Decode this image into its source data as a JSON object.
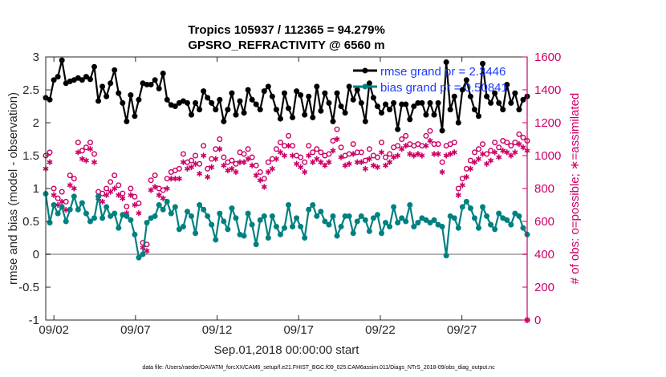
{
  "chart_data": {
    "type": "line",
    "title": "Tropics 105937 / 112365 = 94.279%",
    "subtitle": "GPSRO_REFRACTIVITY @ 6560 m",
    "xlabel": "Sep.01,2018 00:00:00 start",
    "ylabel_left": "rmse and bias (model - observation)",
    "ylabel_right": "# of obs: o=possible; ∗=assimilated",
    "footer": "data file: /Users/raeder/DAI/ATM_forcXX/CAM6_setup/f.e21.FHIST_BGC.f09_025.CAM6assim.011/Diags_NTrS_2018-09/obs_diag_output.nc",
    "x_range_days": [
      0.5,
      30.0
    ],
    "x_ticks": [
      1,
      6,
      11,
      16,
      21,
      26
    ],
    "x_tick_labels": [
      "09/02",
      "09/07",
      "09/12",
      "09/17",
      "09/22",
      "09/27"
    ],
    "ylim_left": [
      -1,
      3
    ],
    "y_ticks_left": [
      "-1",
      "-0.5",
      "0",
      "0.5",
      "1",
      "1.5",
      "2",
      "2.5",
      "3"
    ],
    "ylim_right": [
      0,
      1600
    ],
    "y_ticks_right": [
      "0",
      "200",
      "400",
      "600",
      "800",
      "1000",
      "1200",
      "1400",
      "1600"
    ],
    "legend": [
      "rmse grand pr = 2.3446",
      "bias grand pr = 0.50841"
    ],
    "colors": {
      "rmse": "#000000",
      "bias": "#008080",
      "obs": "#cc0066",
      "legend_text": "#1a3cff",
      "zero_line": "#b3b3b3"
    },
    "n_points": 120,
    "series": [
      {
        "name": "rmse",
        "axis": "left",
        "marker": "filled-circle",
        "values": [
          2.38,
          2.35,
          2.65,
          2.7,
          2.95,
          2.6,
          2.63,
          2.65,
          2.68,
          2.65,
          2.7,
          2.66,
          2.85,
          2.33,
          2.55,
          2.4,
          2.6,
          2.8,
          2.45,
          2.3,
          2.02,
          2.42,
          2.1,
          2.35,
          2.6,
          2.58,
          2.58,
          2.65,
          2.52,
          2.75,
          2.35,
          2.27,
          2.25,
          2.3,
          2.33,
          2.3,
          2.12,
          2.3,
          2.2,
          2.48,
          2.38,
          2.3,
          2.2,
          2.35,
          2.02,
          2.2,
          2.45,
          2.12,
          2.33,
          2.15,
          2.5,
          2.35,
          2.28,
          2.2,
          2.48,
          2.55,
          2.4,
          2.2,
          2.06,
          2.45,
          2.22,
          2.08,
          2.48,
          2.42,
          2.12,
          2.4,
          2.08,
          2.55,
          2.18,
          2.45,
          2.3,
          2.02,
          2.45,
          2.25,
          2.15,
          2.55,
          2.35,
          2.5,
          2.3,
          2.02,
          2.6,
          2.38,
          2.25,
          2.15,
          2.28,
          2.2,
          2.3,
          1.9,
          2.28,
          2.28,
          2.05,
          2.25,
          2.3,
          2.3,
          2.12,
          2.3,
          2.12,
          2.3,
          1.88,
          2.92,
          2.2,
          2.4,
          2.0,
          2.5,
          2.65,
          2.4,
          2.2,
          2.1,
          2.9,
          2.4,
          2.3,
          2.45,
          2.3,
          2.2,
          2.58,
          2.3,
          2.45,
          2.2,
          2.35,
          2.4
        ]
      },
      {
        "name": "bias",
        "axis": "left",
        "marker": "filled-circle",
        "values": [
          0.92,
          0.48,
          0.75,
          0.62,
          0.72,
          0.5,
          0.68,
          0.88,
          0.68,
          0.78,
          0.62,
          0.5,
          0.55,
          0.88,
          0.55,
          0.72,
          0.58,
          0.62,
          0.4,
          0.6,
          0.58,
          0.52,
          0.3,
          -0.05,
          0.0,
          0.48,
          0.55,
          0.58,
          0.75,
          0.68,
          0.8,
          0.62,
          0.72,
          0.38,
          0.42,
          0.65,
          0.58,
          0.32,
          0.75,
          0.68,
          0.58,
          0.45,
          0.22,
          0.62,
          0.5,
          0.38,
          0.7,
          0.55,
          0.3,
          0.28,
          0.62,
          0.45,
          0.15,
          0.52,
          0.58,
          0.25,
          0.58,
          0.42,
          0.3,
          0.4,
          0.75,
          0.42,
          0.55,
          0.42,
          0.25,
          0.68,
          0.75,
          0.58,
          0.65,
          0.5,
          0.45,
          0.58,
          0.28,
          0.42,
          0.58,
          0.58,
          0.32,
          0.5,
          0.58,
          0.52,
          0.35,
          0.55,
          0.6,
          0.32,
          0.48,
          0.42,
          0.72,
          0.48,
          0.55,
          0.5,
          0.75,
          0.42,
          0.48,
          0.55,
          0.52,
          0.48,
          0.52,
          0.45,
          0.42,
          -0.02,
          0.58,
          0.55,
          0.4,
          0.72,
          0.8,
          0.7,
          0.55,
          0.4,
          0.72,
          0.58,
          0.45,
          0.38,
          0.62,
          0.55,
          0.52,
          0.45,
          0.62,
          0.58,
          0.4,
          0.3
        ]
      },
      {
        "name": "possible",
        "axis": "right",
        "marker": "open-circle",
        "values": [
          1000,
          1020,
          800,
          740,
          780,
          720,
          880,
          860,
          1080,
          1030,
          1050,
          1080,
          1010,
          780,
          770,
          800,
          840,
          880,
          820,
          770,
          690,
          800,
          750,
          710,
          470,
          460,
          850,
          880,
          800,
          790,
          860,
          900,
          910,
          920,
          1010,
          960,
          970,
          1000,
          950,
          1060,
          920,
          980,
          1040,
          1100,
          990,
          960,
          970,
          950,
          1020,
          1010,
          1040,
          990,
          940,
          900,
          860,
          960,
          980,
          1040,
          1080,
          1060,
          1120,
          1060,
          1000,
          990,
          960,
          1060,
          1020,
          1040,
          1020,
          1000,
          1010,
          1090,
          1160,
          1050,
          1000,
          1010,
          1070,
          1020,
          1020,
          970,
          1040,
          1000,
          990,
          1080,
          990,
          1010,
          1050,
          1060,
          1100,
          1120,
          1070,
          1060,
          1070,
          1060,
          1120,
          1150,
          1070,
          1070,
          960,
          1060,
          1070,
          1080,
          800,
          860,
          920,
          970,
          1020,
          1040,
          1070,
          1010,
          1030,
          1080,
          1050,
          1090,
          1080,
          1060,
          1080,
          1130,
          1110,
          1090
        ]
      },
      {
        "name": "assimilated",
        "axis": "right",
        "marker": "asterisk",
        "values": [
          920,
          960,
          760,
          700,
          720,
          670,
          820,
          800,
          1020,
          980,
          970,
          1040,
          960,
          740,
          720,
          760,
          780,
          800,
          760,
          740,
          650,
          760,
          700,
          650,
          440,
          420,
          790,
          810,
          760,
          740,
          800,
          860,
          860,
          860,
          960,
          920,
          930,
          950,
          890,
          1000,
          870,
          930,
          980,
          1040,
          940,
          910,
          920,
          900,
          960,
          960,
          980,
          940,
          880,
          850,
          810,
          900,
          920,
          980,
          1020,
          1000,
          1060,
          1000,
          950,
          930,
          900,
          1000,
          960,
          980,
          960,
          940,
          960,
          1030,
          1100,
          990,
          940,
          950,
          1010,
          960,
          960,
          920,
          980,
          940,
          930,
          1020,
          940,
          960,
          990,
          1000,
          1040,
          1060,
          1010,
          1000,
          1010,
          1000,
          1060,
          1090,
          1010,
          1010,
          900,
          1000,
          1010,
          1020,
          760,
          820,
          870,
          920,
          960,
          980,
          1010,
          950,
          970,
          1020,
          990,
          1030,
          1020,
          1000,
          1020,
          1070,
          1050,
          1030
        ]
      }
    ]
  }
}
